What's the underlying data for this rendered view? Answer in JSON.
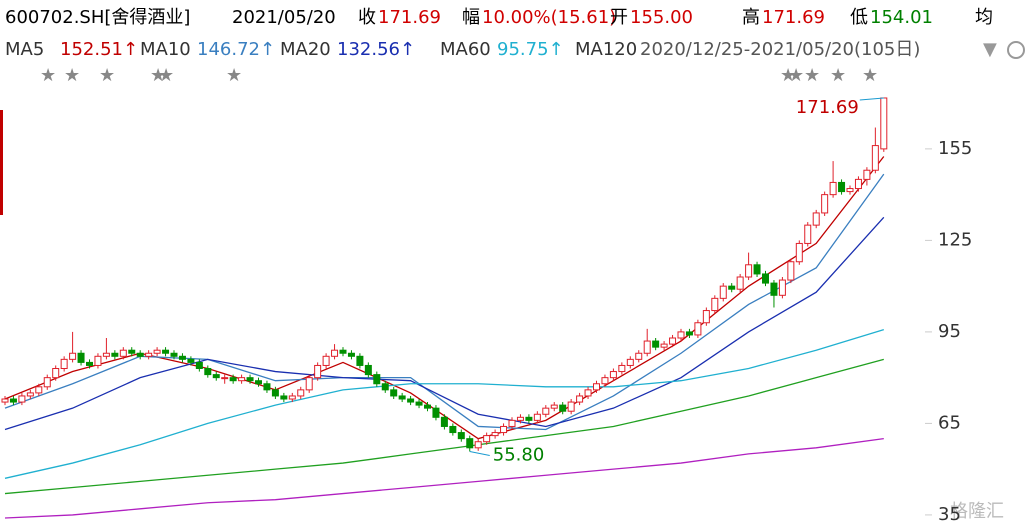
{
  "chart_data": {
    "type": "candlestick",
    "title": "600702.SH[舍得酒业]",
    "date": "2021/05/20",
    "quote": [
      {
        "label": "收",
        "value": "171.69",
        "color": "#d00000"
      },
      {
        "label": "幅",
        "value": "10.00%(15.61)",
        "color": "#d00000"
      },
      {
        "label": "开",
        "value": "155.00",
        "color": "#d00000"
      },
      {
        "label": "高",
        "value": "171.69",
        "color": "#d00000"
      },
      {
        "label": "低",
        "value": "154.01",
        "color": "#008000"
      },
      {
        "label": "均"
      }
    ],
    "range_text": "2020/12/25-2021/05/20(105日)",
    "ylim": [
      29.4,
      182.5
    ],
    "yticks": [
      35,
      65,
      95,
      125,
      155
    ],
    "up_color": "#e0202a",
    "down_color": "#009000",
    "ohlc": [
      [
        72,
        74,
        71,
        73
      ],
      [
        73,
        74,
        71,
        72
      ],
      [
        72,
        75,
        71,
        74
      ],
      [
        74,
        76,
        73,
        75
      ],
      [
        75,
        78,
        74,
        77
      ],
      [
        77,
        81,
        76,
        80
      ],
      [
        80,
        84,
        79,
        83
      ],
      [
        83,
        87,
        82,
        86
      ],
      [
        86,
        95,
        85,
        88
      ],
      [
        88,
        89,
        84,
        85
      ],
      [
        85,
        86,
        83,
        84
      ],
      [
        84,
        88,
        83,
        87
      ],
      [
        87,
        93,
        86,
        88
      ],
      [
        88,
        89,
        86,
        87
      ],
      [
        87,
        90,
        86,
        89
      ],
      [
        89,
        90,
        87,
        88
      ],
      [
        88,
        89,
        86,
        87
      ],
      [
        87,
        89,
        86,
        88
      ],
      [
        88,
        90,
        87,
        89
      ],
      [
        89,
        90,
        87,
        88
      ],
      [
        88,
        89,
        86,
        87
      ],
      [
        87,
        88,
        85,
        86
      ],
      [
        86,
        87,
        84,
        85
      ],
      [
        85,
        86,
        82,
        83
      ],
      [
        83,
        84,
        80,
        81
      ],
      [
        81,
        82,
        79,
        80
      ],
      [
        80,
        81,
        78,
        80
      ],
      [
        80,
        81,
        78,
        79
      ],
      [
        79,
        81,
        78,
        80
      ],
      [
        80,
        81,
        78,
        79
      ],
      [
        79,
        80,
        77,
        78
      ],
      [
        78,
        79,
        75,
        76
      ],
      [
        76,
        77,
        73,
        74
      ],
      [
        74,
        75,
        72,
        73
      ],
      [
        73,
        75,
        72,
        74
      ],
      [
        74,
        77,
        73,
        76
      ],
      [
        76,
        81,
        75,
        80
      ],
      [
        80,
        85,
        79,
        84
      ],
      [
        84,
        88,
        83,
        87
      ],
      [
        87,
        91,
        86,
        89
      ],
      [
        89,
        90,
        87,
        88
      ],
      [
        88,
        89,
        86,
        87
      ],
      [
        87,
        88,
        83,
        84
      ],
      [
        84,
        85,
        80,
        81
      ],
      [
        81,
        82,
        77,
        78
      ],
      [
        78,
        79,
        75,
        76
      ],
      [
        76,
        77,
        73,
        74
      ],
      [
        74,
        75,
        72,
        73
      ],
      [
        73,
        74,
        71,
        72
      ],
      [
        72,
        73,
        70,
        71
      ],
      [
        71,
        72,
        69,
        70
      ],
      [
        70,
        71,
        66,
        67
      ],
      [
        67,
        68,
        63,
        64
      ],
      [
        64,
        65,
        61,
        62
      ],
      [
        62,
        63,
        59,
        60
      ],
      [
        60,
        61,
        55.8,
        57
      ],
      [
        57,
        60,
        56,
        59
      ],
      [
        59,
        62,
        58,
        61
      ],
      [
        61,
        63,
        60,
        62
      ],
      [
        62,
        65,
        61,
        64
      ],
      [
        64,
        67,
        63,
        66
      ],
      [
        66,
        68,
        65,
        67
      ],
      [
        67,
        68,
        65,
        66
      ],
      [
        66,
        69,
        65,
        68
      ],
      [
        68,
        71,
        67,
        70
      ],
      [
        70,
        72,
        69,
        71
      ],
      [
        71,
        72,
        68,
        69
      ],
      [
        69,
        73,
        68,
        72
      ],
      [
        72,
        75,
        71,
        74
      ],
      [
        74,
        77,
        73,
        76
      ],
      [
        76,
        79,
        75,
        78
      ],
      [
        78,
        81,
        77,
        80
      ],
      [
        80,
        83,
        79,
        82
      ],
      [
        82,
        85,
        81,
        84
      ],
      [
        84,
        87,
        83,
        86
      ],
      [
        86,
        89,
        85,
        88
      ],
      [
        88,
        96,
        87,
        92
      ],
      [
        92,
        93,
        89,
        90
      ],
      [
        90,
        92,
        89,
        91
      ],
      [
        91,
        94,
        90,
        93
      ],
      [
        93,
        96,
        92,
        95
      ],
      [
        95,
        96,
        93,
        94
      ],
      [
        94,
        99,
        93,
        98
      ],
      [
        98,
        103,
        97,
        102
      ],
      [
        102,
        107,
        101,
        106
      ],
      [
        106,
        111,
        105,
        110
      ],
      [
        110,
        111,
        108,
        109
      ],
      [
        109,
        114,
        108,
        113
      ],
      [
        113,
        121,
        112,
        117
      ],
      [
        117,
        118,
        113,
        114
      ],
      [
        114,
        115,
        110,
        111
      ],
      [
        111,
        112,
        103,
        107
      ],
      [
        107,
        113,
        106,
        112
      ],
      [
        112,
        119,
        111,
        118
      ],
      [
        118,
        125,
        117,
        124
      ],
      [
        124,
        131,
        123,
        130
      ],
      [
        130,
        135,
        129,
        134
      ],
      [
        134,
        141,
        133,
        140
      ],
      [
        140,
        151,
        139,
        144
      ],
      [
        144,
        145,
        140,
        141
      ],
      [
        141,
        143,
        140,
        142
      ],
      [
        142,
        146,
        141,
        145
      ],
      [
        145,
        149,
        143,
        148
      ],
      [
        148,
        162,
        147,
        156.08
      ],
      [
        155,
        171.69,
        154.01,
        171.69
      ]
    ],
    "ma_x": [
      0,
      8,
      16,
      24,
      32,
      40,
      48,
      56,
      64,
      72,
      80,
      88,
      96,
      104
    ],
    "series": [
      {
        "name": "MA5",
        "color": "#c00000",
        "value_label": "152.51↑",
        "values": [
          73,
          82,
          88,
          83,
          76,
          85,
          75,
          60,
          66,
          79,
          92,
          110,
          124,
          152.51
        ]
      },
      {
        "name": "MA10",
        "color": "#3a7fc0",
        "value_label": "146.72↑",
        "values": [
          70,
          78,
          87,
          86,
          79,
          80,
          80,
          64,
          63,
          74,
          88,
          104,
          116,
          146.72
        ]
      },
      {
        "name": "MA20",
        "color": "#1a2fb0",
        "value_label": "132.56↑",
        "values": [
          63,
          70,
          80,
          86,
          82,
          80,
          79,
          68,
          64,
          70,
          80,
          95,
          108,
          132.56
        ]
      },
      {
        "name": "MA60",
        "color": "#20b0d0",
        "value_label": "95.75↑",
        "values": [
          47,
          52,
          58,
          65,
          71,
          76,
          78,
          78,
          77,
          77,
          79,
          83,
          89,
          95.75
        ]
      },
      {
        "name": "MA120",
        "color": "#20a020",
        "values": [
          42,
          44,
          46,
          48,
          50,
          52,
          55,
          58,
          61,
          64,
          69,
          74,
          80,
          86
        ]
      },
      {
        "color": "#b020c0",
        "values": [
          34,
          35,
          37,
          39,
          40,
          42,
          44,
          46,
          48,
          50,
          52,
          55,
          57,
          60
        ]
      }
    ],
    "annotations": [
      "171.69",
      "55.80"
    ],
    "watermark": "格隆汇"
  }
}
